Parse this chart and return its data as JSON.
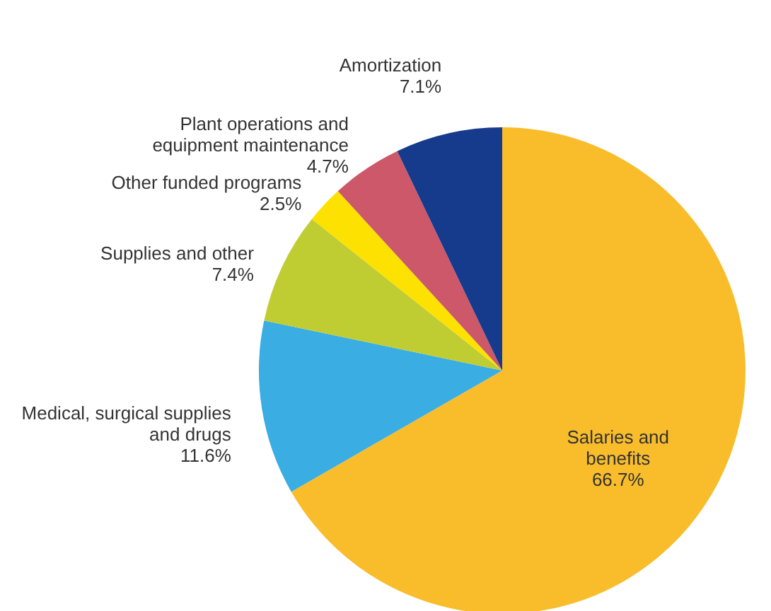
{
  "chart_data": {
    "type": "pie",
    "categories": [
      "Salaries and benefits",
      "Medical, surgical supplies and drugs",
      "Supplies and other",
      "Other funded programs",
      "Plant operations and equipment maintenance",
      "Amortization"
    ],
    "values": [
      66.7,
      11.6,
      7.4,
      2.5,
      4.7,
      7.1
    ],
    "value_labels": [
      "66.7%",
      "11.6%",
      "7.4%",
      "2.5%",
      "4.7%",
      "7.1%"
    ],
    "colors": [
      "#f9bd2b",
      "#3aade2",
      "#bfcd33",
      "#fde100",
      "#cc5869",
      "#163b8c"
    ]
  }
}
